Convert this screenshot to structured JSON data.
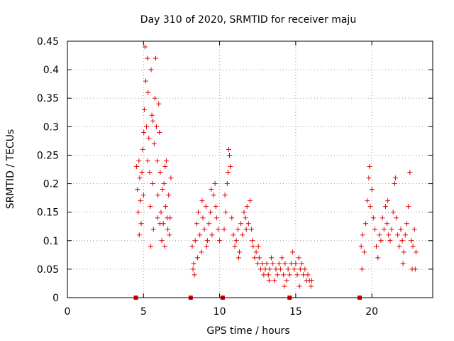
{
  "chart_data": {
    "type": "scatter",
    "title": "Day 310 of 2020, SRMTID for receiver maju",
    "xlabel": "GPS time / hours",
    "ylabel": "SRMTID / TECUs",
    "xlim": [
      0,
      24
    ],
    "ylim": [
      0,
      0.45
    ],
    "grid": true,
    "marker": "+",
    "color": "#e00000",
    "xticks": [
      0,
      5,
      10,
      15,
      20
    ],
    "xtick_labels": [
      "0",
      "5",
      "10",
      "15",
      "20"
    ],
    "yticks": [
      0,
      0.05,
      0.1,
      0.15,
      0.2,
      0.25,
      0.3,
      0.35,
      0.4,
      0.45
    ],
    "ytick_labels": [
      "0",
      "0.05",
      "0.1",
      "0.15",
      "0.2",
      "0.25",
      "0.3",
      "0.35",
      "0.4",
      "0.45"
    ],
    "data_gaps_x": [
      4.5,
      8.1,
      10.2,
      14.6,
      19.2
    ],
    "series": [
      {
        "name": "SRMTID",
        "points": [
          [
            4.55,
            0.23
          ],
          [
            4.6,
            0.19
          ],
          [
            4.65,
            0.15
          ],
          [
            4.7,
            0.24
          ],
          [
            4.75,
            0.21
          ],
          [
            4.8,
            0.17
          ],
          [
            4.85,
            0.13
          ],
          [
            4.9,
            0.22
          ],
          [
            4.95,
            0.26
          ],
          [
            5.0,
            0.18
          ],
          [
            5.05,
            0.33
          ],
          [
            5.1,
            0.44
          ],
          [
            5.15,
            0.38
          ],
          [
            5.2,
            0.3
          ],
          [
            5.25,
            0.42
          ],
          [
            5.3,
            0.36
          ],
          [
            5.35,
            0.28
          ],
          [
            5.4,
            0.22
          ],
          [
            5.45,
            0.16
          ],
          [
            5.5,
            0.4
          ],
          [
            5.55,
            0.32
          ],
          [
            5.6,
            0.2
          ],
          [
            5.65,
            0.12
          ],
          [
            5.7,
            0.27
          ],
          [
            5.75,
            0.35
          ],
          [
            5.8,
            0.42
          ],
          [
            5.85,
            0.3
          ],
          [
            5.9,
            0.24
          ],
          [
            5.95,
            0.18
          ],
          [
            6.0,
            0.34
          ],
          [
            6.05,
            0.29
          ],
          [
            6.1,
            0.22
          ],
          [
            6.15,
            0.15
          ],
          [
            6.2,
            0.1
          ],
          [
            6.25,
            0.19
          ],
          [
            6.3,
            0.13
          ],
          [
            6.35,
            0.2
          ],
          [
            6.4,
            0.09
          ],
          [
            6.45,
            0.16
          ],
          [
            6.5,
            0.24
          ],
          [
            6.55,
            0.14
          ],
          [
            6.6,
            0.12
          ],
          [
            6.65,
            0.18
          ],
          [
            6.7,
            0.11
          ],
          [
            6.75,
            0.14
          ],
          [
            6.8,
            0.21
          ],
          [
            5.02,
            0.29
          ],
          [
            5.28,
            0.24
          ],
          [
            5.62,
            0.31
          ],
          [
            6.08,
            0.13
          ],
          [
            4.72,
            0.11
          ],
          [
            5.48,
            0.09
          ],
          [
            5.92,
            0.14
          ],
          [
            6.42,
            0.23
          ],
          [
            8.2,
            0.09
          ],
          [
            8.3,
            0.06
          ],
          [
            8.4,
            0.1
          ],
          [
            8.5,
            0.13
          ],
          [
            8.6,
            0.15
          ],
          [
            8.7,
            0.11
          ],
          [
            8.8,
            0.08
          ],
          [
            8.9,
            0.14
          ],
          [
            9.0,
            0.12
          ],
          [
            9.1,
            0.16
          ],
          [
            9.2,
            0.1
          ],
          [
            9.3,
            0.13
          ],
          [
            9.4,
            0.15
          ],
          [
            9.5,
            0.11
          ],
          [
            9.6,
            0.18
          ],
          [
            9.7,
            0.2
          ],
          [
            9.8,
            0.14
          ],
          [
            9.9,
            0.12
          ],
          [
            10.0,
            0.1
          ],
          [
            8.25,
            0.05
          ],
          [
            8.55,
            0.07
          ],
          [
            8.85,
            0.17
          ],
          [
            9.15,
            0.09
          ],
          [
            9.45,
            0.19
          ],
          [
            9.75,
            0.16
          ],
          [
            8.35,
            0.04
          ],
          [
            10.3,
            0.12
          ],
          [
            10.4,
            0.15
          ],
          [
            10.5,
            0.2
          ],
          [
            10.6,
            0.26
          ],
          [
            10.65,
            0.25
          ],
          [
            10.7,
            0.23
          ],
          [
            10.8,
            0.14
          ],
          [
            10.9,
            0.11
          ],
          [
            11.0,
            0.09
          ],
          [
            11.1,
            0.1
          ],
          [
            11.2,
            0.12
          ],
          [
            11.3,
            0.08
          ],
          [
            11.4,
            0.13
          ],
          [
            11.5,
            0.11
          ],
          [
            11.6,
            0.15
          ],
          [
            11.7,
            0.14
          ],
          [
            11.8,
            0.16
          ],
          [
            11.9,
            0.13
          ],
          [
            12.0,
            0.17
          ],
          [
            12.1,
            0.12
          ],
          [
            12.2,
            0.09
          ],
          [
            12.3,
            0.07
          ],
          [
            12.4,
            0.08
          ],
          [
            12.5,
            0.06
          ],
          [
            12.6,
            0.07
          ],
          [
            12.7,
            0.05
          ],
          [
            12.8,
            0.06
          ],
          [
            12.9,
            0.04
          ],
          [
            13.0,
            0.05
          ],
          [
            13.1,
            0.06
          ],
          [
            13.2,
            0.04
          ],
          [
            13.3,
            0.05
          ],
          [
            13.4,
            0.07
          ],
          [
            13.5,
            0.06
          ],
          [
            13.6,
            0.03
          ],
          [
            13.7,
            0.05
          ],
          [
            13.8,
            0.04
          ],
          [
            13.9,
            0.06
          ],
          [
            14.0,
            0.05
          ],
          [
            14.1,
            0.07
          ],
          [
            14.2,
            0.04
          ],
          [
            14.3,
            0.06
          ],
          [
            14.4,
            0.03
          ],
          [
            14.5,
            0.05
          ],
          [
            14.6,
            0.04
          ],
          [
            14.7,
            0.06
          ],
          [
            14.8,
            0.08
          ],
          [
            14.9,
            0.05
          ],
          [
            15.0,
            0.06
          ],
          [
            15.1,
            0.04
          ],
          [
            15.2,
            0.07
          ],
          [
            15.3,
            0.05
          ],
          [
            15.4,
            0.06
          ],
          [
            15.5,
            0.04
          ],
          [
            15.6,
            0.05
          ],
          [
            15.7,
            0.03
          ],
          [
            15.8,
            0.04
          ],
          [
            15.9,
            0.03
          ],
          [
            16.0,
            0.02
          ],
          [
            16.05,
            0.03
          ],
          [
            10.35,
            0.18
          ],
          [
            10.55,
            0.22
          ],
          [
            11.25,
            0.07
          ],
          [
            11.75,
            0.12
          ],
          [
            12.15,
            0.1
          ],
          [
            13.25,
            0.03
          ],
          [
            14.25,
            0.02
          ],
          [
            15.25,
            0.02
          ],
          [
            12.55,
            0.09
          ],
          [
            19.3,
            0.09
          ],
          [
            19.4,
            0.11
          ],
          [
            19.5,
            0.08
          ],
          [
            19.6,
            0.13
          ],
          [
            19.7,
            0.17
          ],
          [
            19.8,
            0.21
          ],
          [
            19.9,
            0.16
          ],
          [
            20.0,
            0.19
          ],
          [
            20.1,
            0.14
          ],
          [
            20.2,
            0.12
          ],
          [
            20.3,
            0.09
          ],
          [
            20.4,
            0.07
          ],
          [
            20.5,
            0.11
          ],
          [
            20.6,
            0.1
          ],
          [
            20.7,
            0.14
          ],
          [
            20.8,
            0.12
          ],
          [
            20.9,
            0.16
          ],
          [
            21.0,
            0.13
          ],
          [
            21.1,
            0.11
          ],
          [
            21.2,
            0.1
          ],
          [
            21.3,
            0.12
          ],
          [
            21.4,
            0.15
          ],
          [
            21.5,
            0.2
          ],
          [
            21.6,
            0.14
          ],
          [
            21.7,
            0.11
          ],
          [
            21.8,
            0.09
          ],
          [
            21.9,
            0.12
          ],
          [
            22.0,
            0.1
          ],
          [
            22.1,
            0.08
          ],
          [
            22.2,
            0.11
          ],
          [
            22.3,
            0.13
          ],
          [
            22.4,
            0.16
          ],
          [
            22.5,
            0.22
          ],
          [
            22.6,
            0.1
          ],
          [
            22.7,
            0.09
          ],
          [
            22.8,
            0.12
          ],
          [
            22.9,
            0.08
          ],
          [
            19.35,
            0.05
          ],
          [
            19.85,
            0.23
          ],
          [
            21.05,
            0.17
          ],
          [
            21.55,
            0.21
          ],
          [
            22.05,
            0.06
          ],
          [
            22.65,
            0.05
          ],
          [
            22.85,
            0.05
          ]
        ]
      }
    ]
  }
}
